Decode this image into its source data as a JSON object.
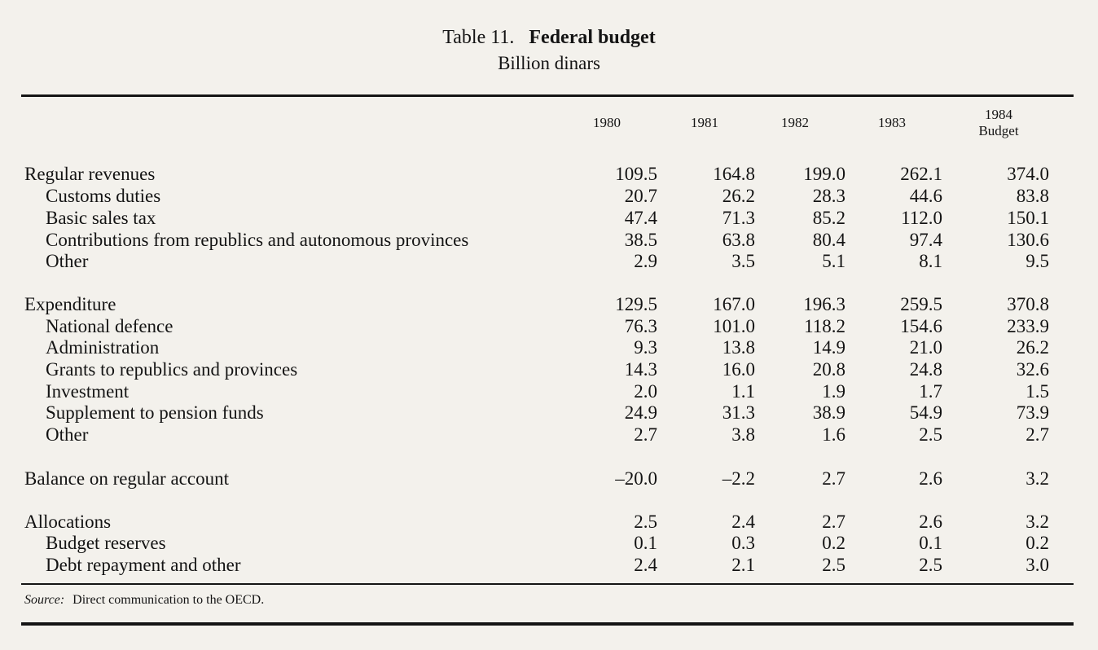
{
  "title": {
    "label": "Table 11.",
    "name": "Federal budget"
  },
  "subtitle": "Billion dinars",
  "columns": [
    {
      "line1": "1980",
      "line2": ""
    },
    {
      "line1": "1981",
      "line2": ""
    },
    {
      "line1": "1982",
      "line2": ""
    },
    {
      "line1": "1983",
      "line2": ""
    },
    {
      "line1": "1984",
      "line2": "Budget"
    }
  ],
  "rows": [
    {
      "label": "Regular revenues",
      "values": [
        "109.5",
        "164.8",
        "199.0",
        "262.1",
        "374.0"
      ]
    },
    {
      "label": "Customs duties",
      "values": [
        "20.7",
        "26.2",
        "28.3",
        "44.6",
        "83.8"
      ]
    },
    {
      "label": "Basic sales tax",
      "values": [
        "47.4",
        "71.3",
        "85.2",
        "112.0",
        "150.1"
      ]
    },
    {
      "label": "Contributions from republics and autonomous provinces",
      "values": [
        "38.5",
        "63.8",
        "80.4",
        "97.4",
        "130.6"
      ]
    },
    {
      "label": "Other",
      "values": [
        "2.9",
        "3.5",
        "5.1",
        "8.1",
        "9.5"
      ]
    },
    {
      "label": "Expenditure",
      "values": [
        "129.5",
        "167.0",
        "196.3",
        "259.5",
        "370.8"
      ]
    },
    {
      "label": "National defence",
      "values": [
        "76.3",
        "101.0",
        "118.2",
        "154.6",
        "233.9"
      ]
    },
    {
      "label": "Administration",
      "values": [
        "9.3",
        "13.8",
        "14.9",
        "21.0",
        "26.2"
      ]
    },
    {
      "label": "Grants to republics and provinces",
      "values": [
        "14.3",
        "16.0",
        "20.8",
        "24.8",
        "32.6"
      ]
    },
    {
      "label": "Investment",
      "values": [
        "2.0",
        "1.1",
        "1.9",
        "1.7",
        "1.5"
      ]
    },
    {
      "label": "Supplement to pension funds",
      "values": [
        "24.9",
        "31.3",
        "38.9",
        "54.9",
        "73.9"
      ]
    },
    {
      "label": "Other",
      "values": [
        "2.7",
        "3.8",
        "1.6",
        "2.5",
        "2.7"
      ]
    },
    {
      "label": "Balance on regular account",
      "values": [
        "–20.0",
        "–2.2",
        "2.7",
        "2.6",
        "3.2"
      ]
    },
    {
      "label": "Allocations",
      "values": [
        "2.5",
        "2.4",
        "2.7",
        "2.6",
        "3.2"
      ]
    },
    {
      "label": "Budget reserves",
      "values": [
        "0.1",
        "0.3",
        "0.2",
        "0.1",
        "0.2"
      ]
    },
    {
      "label": "Debt repayment and other",
      "values": [
        "2.4",
        "2.1",
        "2.5",
        "2.5",
        "3.0"
      ]
    }
  ],
  "source": {
    "label": "Source:",
    "text": "Direct communication to the OECD."
  }
}
